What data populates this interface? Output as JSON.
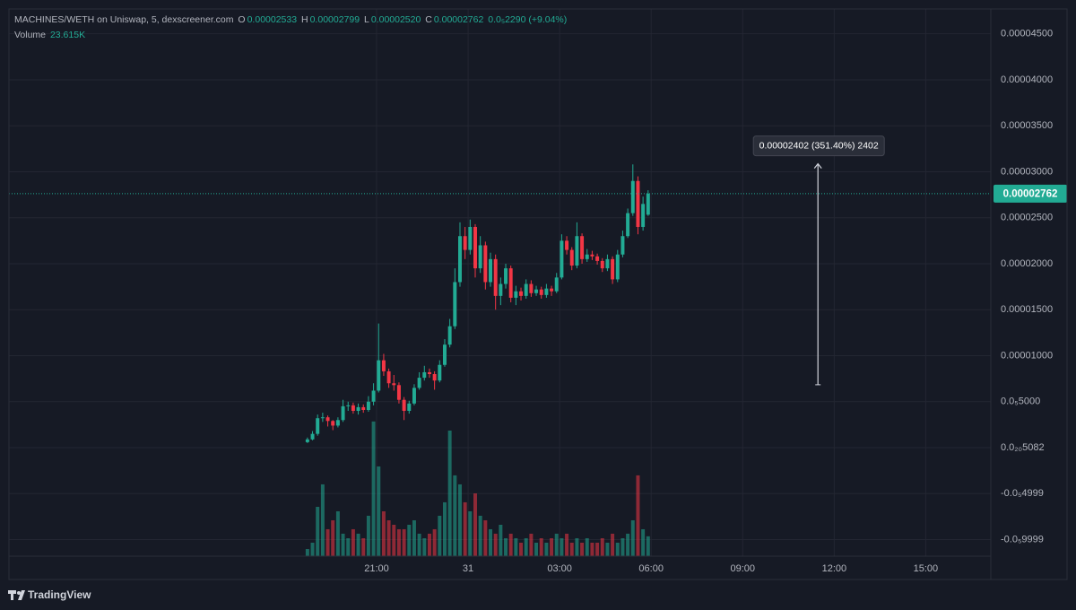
{
  "chart_data": {
    "type": "candlestick",
    "legend": {
      "symbol": "MACHINES/WETH on Uniswap, 5, dexscreener.com",
      "o": "O",
      "o_value": "0.00002533",
      "h": "H",
      "h_value": "0.00002799",
      "l": "L",
      "l_value": "0.00002520",
      "c": "C",
      "c_value": "0.00002762",
      "change": "0.0₅2290 (+9.04%)",
      "volume": "Volume",
      "volume_value": "23.615K"
    },
    "up_color": "#22ab94",
    "down_color": "#f23645",
    "open": [
      6e-07,
      9e-07,
      1.5e-06,
      3.2e-06,
      3.3e-06,
      2.9e-06,
      2.4e-06,
      3e-06,
      4.5e-06,
      4.6e-06,
      4e-06,
      4.4e-06,
      4.1e-06,
      5e-06,
      6.2e-06,
      9.5e-06,
      8.3e-06,
      7e-06,
      6.8e-06,
      5.2e-06,
      4e-06,
      4.8e-06,
      6.5e-06,
      7.6e-06,
      8.2e-06,
      8e-06,
      7.3e-06,
      9e-06,
      1.12e-05,
      1.32e-05,
      1.8e-05,
      2.3e-05,
      2.15e-05,
      2.4e-05,
      1.95e-05,
      2.2e-05,
      1.8e-05,
      2.05e-05,
      1.65e-05,
      1.78e-05,
      1.95e-05,
      1.63e-05,
      1.7e-05,
      1.65e-05,
      1.78e-05,
      1.68e-05,
      1.72e-05,
      1.66e-05,
      1.73e-05,
      1.7e-05,
      1.85e-05,
      2.25e-05,
      2.15e-05,
      1.98e-05,
      2.3e-05,
      2.05e-05,
      2.1e-05,
      2.08e-05,
      2.03e-05,
      1.95e-05,
      2.05e-05,
      1.83e-05,
      2.1e-05,
      2.3e-05,
      2.55e-05,
      2.9e-05,
      2.4e-05,
      2.533e-05
    ],
    "high": [
      1.1e-06,
      1.8e-06,
      3.6e-06,
      3.8e-06,
      3.5e-06,
      3e-06,
      3.3e-06,
      5.2e-06,
      5e-06,
      4.9e-06,
      4.8e-06,
      4.7e-06,
      5.6e-06,
      7e-06,
      1.35e-05,
      1.02e-05,
      8.6e-06,
      7.9e-06,
      7.1e-06,
      5.5e-06,
      5.1e-06,
      6.9e-06,
      8.2e-06,
      8.9e-06,
      8.6e-06,
      8.3e-06,
      9.5e-06,
      1.18e-05,
      1.4e-05,
      1.95e-05,
      2.45e-05,
      2.4e-05,
      2.48e-05,
      2.43e-05,
      2.3e-05,
      2.24e-05,
      2.12e-05,
      2.1e-05,
      1.85e-05,
      2e-05,
      1.98e-05,
      1.76e-05,
      1.74e-05,
      1.83e-05,
      1.82e-05,
      1.76e-05,
      1.75e-05,
      1.78e-05,
      1.76e-05,
      1.9e-05,
      2.32e-05,
      2.3e-05,
      2.18e-05,
      2.45e-05,
      2.33e-05,
      2.16e-05,
      2.14e-05,
      2.11e-05,
      2.06e-05,
      2.1e-05,
      2.08e-05,
      2.15e-05,
      2.36e-05,
      2.6e-05,
      3.08e-05,
      2.95e-05,
      2.73e-05,
      2.799e-05
    ],
    "low": [
      5e-07,
      8e-07,
      1.3e-06,
      2.8e-06,
      2.3e-06,
      1.9e-06,
      2.2e-06,
      2.8e-06,
      4e-06,
      3.7e-06,
      3.6e-06,
      3.8e-06,
      3.9e-06,
      4.6e-06,
      6e-06,
      7.8e-06,
      6.5e-06,
      6.2e-06,
      4.8e-06,
      3e-06,
      3.7e-06,
      4.6e-06,
      6.3e-06,
      7.3e-06,
      7.6e-06,
      6.3e-06,
      7.1e-06,
      8.8e-06,
      1.09e-05,
      1.29e-05,
      1.75e-05,
      2.05e-05,
      2.1e-05,
      1.85e-05,
      1.9e-05,
      1.72e-05,
      1.75e-05,
      1.5e-05,
      1.55e-05,
      1.73e-05,
      1.58e-05,
      1.55e-05,
      1.6e-05,
      1.62e-05,
      1.64e-05,
      1.65e-05,
      1.62e-05,
      1.63e-05,
      1.65e-05,
      1.68e-05,
      1.83e-05,
      2.1e-05,
      1.93e-05,
      1.95e-05,
      2e-05,
      2.02e-05,
      2.04e-05,
      1.99e-05,
      1.91e-05,
      1.92e-05,
      1.78e-05,
      1.8e-05,
      2.07e-05,
      2.28e-05,
      2.52e-05,
      2.32e-05,
      2.36e-05,
      2.52e-05
    ],
    "close": [
      9e-07,
      1.5e-06,
      3.2e-06,
      3.3e-06,
      2.9e-06,
      2.4e-06,
      3e-06,
      4.5e-06,
      4.6e-06,
      4e-06,
      4.4e-06,
      4.1e-06,
      5e-06,
      6.2e-06,
      9.5e-06,
      8.3e-06,
      7e-06,
      6.8e-06,
      5.2e-06,
      4e-06,
      4.8e-06,
      6.5e-06,
      7.6e-06,
      8.2e-06,
      8e-06,
      7.3e-06,
      9e-06,
      1.12e-05,
      1.32e-05,
      1.8e-05,
      2.3e-05,
      2.15e-05,
      2.4e-05,
      1.95e-05,
      2.2e-05,
      1.8e-05,
      2.05e-05,
      1.65e-05,
      1.78e-05,
      1.95e-05,
      1.63e-05,
      1.7e-05,
      1.65e-05,
      1.78e-05,
      1.68e-05,
      1.72e-05,
      1.66e-05,
      1.73e-05,
      1.7e-05,
      1.85e-05,
      2.25e-05,
      2.15e-05,
      1.98e-05,
      2.3e-05,
      2.05e-05,
      2.1e-05,
      2.08e-05,
      2.03e-05,
      1.95e-05,
      2.05e-05,
      1.83e-05,
      2.1e-05,
      2.3e-05,
      2.55e-05,
      2.9e-05,
      2.4e-05,
      2.65e-05,
      2.762e-05
    ],
    "volume": [
      8500,
      16000,
      58600,
      85300,
      32000,
      42600,
      53300,
      26700,
      21300,
      32000,
      26700,
      21300,
      48000,
      160000,
      106600,
      53300,
      42600,
      37300,
      32000,
      32000,
      37300,
      42600,
      26700,
      21300,
      26700,
      32000,
      48000,
      64000,
      149200,
      96000,
      85300,
      64000,
      53300,
      74600,
      48000,
      42600,
      32000,
      26700,
      37300,
      21300,
      26700,
      21300,
      16000,
      21300,
      26700,
      16000,
      21300,
      16000,
      21300,
      26700,
      21300,
      26700,
      16000,
      21300,
      16000,
      21300,
      16000,
      16000,
      21300,
      16000,
      26700,
      16000,
      21300,
      26700,
      42600,
      96000,
      32000,
      23615
    ],
    "volume_ylim": [
      0,
      650000
    ],
    "xlim": [
      -58.7,
      134.4
    ],
    "xticks": [
      {
        "value": 13.6,
        "label": "21:00"
      },
      {
        "value": 31.6,
        "label": "31"
      },
      {
        "value": 49.6,
        "label": "03:00"
      },
      {
        "value": 67.6,
        "label": "06:00"
      },
      {
        "value": 85.6,
        "label": "09:00"
      },
      {
        "value": 103.6,
        "label": "12:00"
      },
      {
        "value": 121.6,
        "label": "15:00"
      }
    ],
    "ylim": [
      -1.18e-05,
      4.77e-05
    ],
    "yticks": [
      {
        "value": 4.5e-05,
        "label": "0.00004500"
      },
      {
        "value": 4e-05,
        "label": "0.00004000"
      },
      {
        "value": 3.5e-05,
        "label": "0.00003500"
      },
      {
        "value": 3e-05,
        "label": "0.00003000"
      },
      {
        "value": 2.5e-05,
        "label": "0.00002500"
      },
      {
        "value": 2e-05,
        "label": "0.00002000"
      },
      {
        "value": 1.5e-05,
        "label": "0.00001500"
      },
      {
        "value": 1e-05,
        "label": "0.00001000"
      },
      {
        "value": 5e-06,
        "label": "0.0₅5000"
      },
      {
        "value": 5.082e-24,
        "label": "0.0₂₀5082"
      },
      {
        "value": -4.999e-06,
        "label": "-0.0₅4999"
      },
      {
        "value": -9.999e-06,
        "label": "-0.0₅9999"
      }
    ],
    "last_price": {
      "value": 2.762e-05,
      "label": "0.00002762"
    },
    "measure": {
      "label": "0.00002402 (351.40%) 2402",
      "from": 6.84e-06,
      "to": 3.086e-05,
      "x": 100.4
    },
    "grid": true,
    "brand": "TradingView"
  }
}
